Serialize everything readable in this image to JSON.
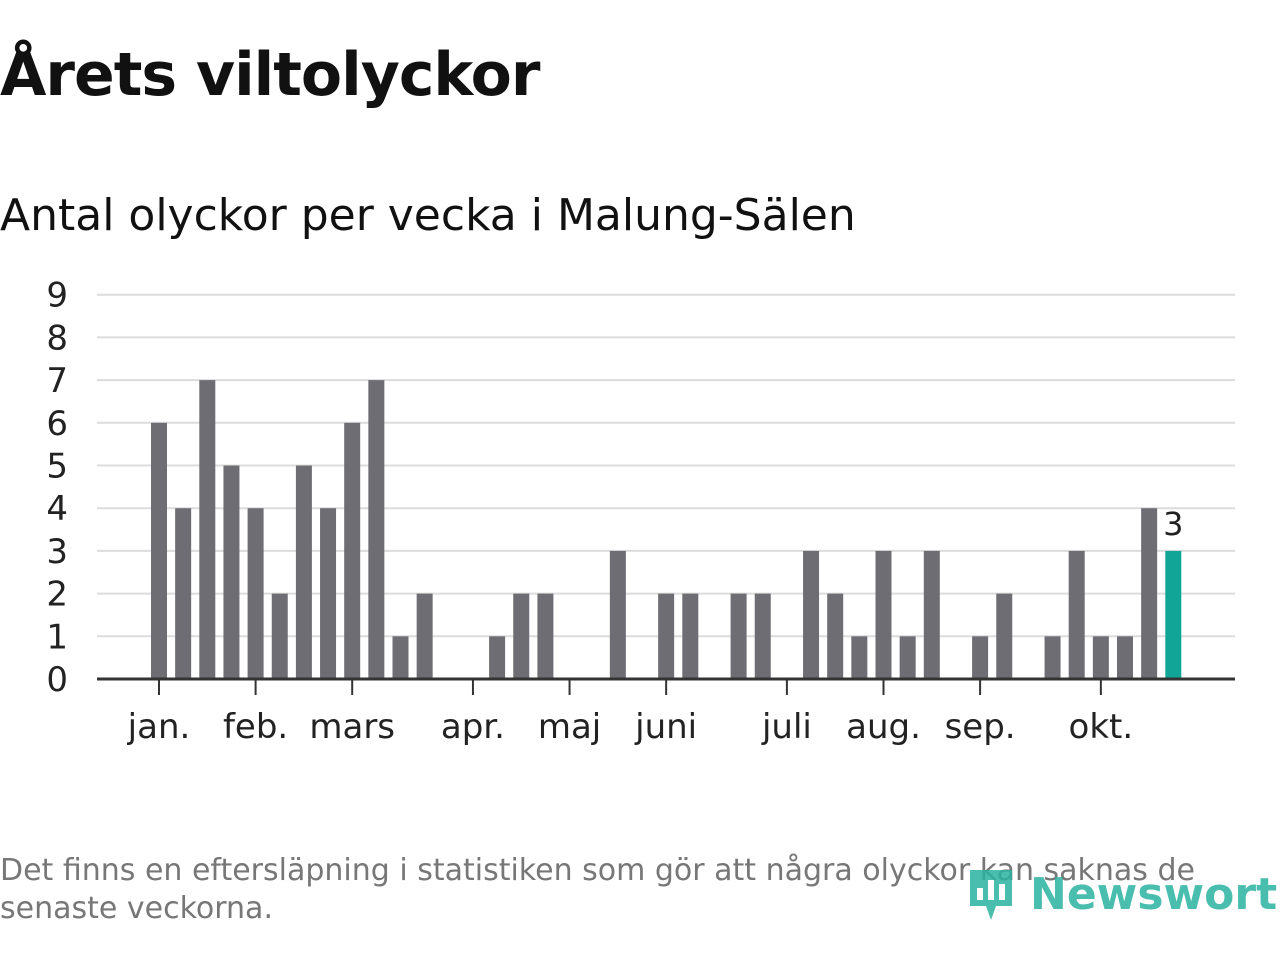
{
  "title": "Årets viltolyckor",
  "subtitle": "Antal olyckor per vecka i Malung-Sälen",
  "footnote": "Det finns en eftersläpning i statistiken som gör att några olyckor kan saknas de senaste veckorna.",
  "logo": {
    "name": "Newsworthy"
  },
  "colors": {
    "bar": "#6e6d73",
    "highlight": "#11a597",
    "grid": "#dcdcdc",
    "axis": "#333333"
  },
  "chart_data": {
    "type": "bar",
    "title": "Antal olyckor per vecka i Malung-Sälen",
    "xlabel": "",
    "ylabel": "",
    "ylim": [
      0,
      9
    ],
    "yticks": [
      0,
      1,
      2,
      3,
      4,
      5,
      6,
      7,
      8,
      9
    ],
    "grid": true,
    "weeks": [
      1,
      2,
      3,
      4,
      5,
      6,
      7,
      8,
      9,
      10,
      11,
      12,
      13,
      14,
      15,
      16,
      17,
      18,
      19,
      20,
      21,
      22,
      23,
      24,
      25,
      26,
      27,
      28,
      29,
      30,
      31,
      32,
      33,
      34,
      35,
      36,
      37,
      38,
      39,
      40,
      41,
      42,
      43
    ],
    "values": [
      6,
      4,
      7,
      5,
      4,
      2,
      5,
      4,
      6,
      7,
      1,
      2,
      0,
      0,
      1,
      2,
      2,
      0,
      0,
      3,
      0,
      2,
      2,
      0,
      2,
      2,
      0,
      3,
      2,
      1,
      3,
      1,
      3,
      0,
      1,
      2,
      0,
      1,
      3,
      1,
      1,
      4,
      3
    ],
    "highlight_index": 42,
    "highlight_label": "3",
    "month_ticks": [
      {
        "label": "jan.",
        "week": 1
      },
      {
        "label": "feb.",
        "week": 5
      },
      {
        "label": "mars",
        "week": 9
      },
      {
        "label": "apr.",
        "week": 14
      },
      {
        "label": "maj",
        "week": 18
      },
      {
        "label": "juni",
        "week": 22
      },
      {
        "label": "juli",
        "week": 27
      },
      {
        "label": "aug.",
        "week": 31
      },
      {
        "label": "sep.",
        "week": 35
      },
      {
        "label": "okt.",
        "week": 40
      }
    ]
  }
}
